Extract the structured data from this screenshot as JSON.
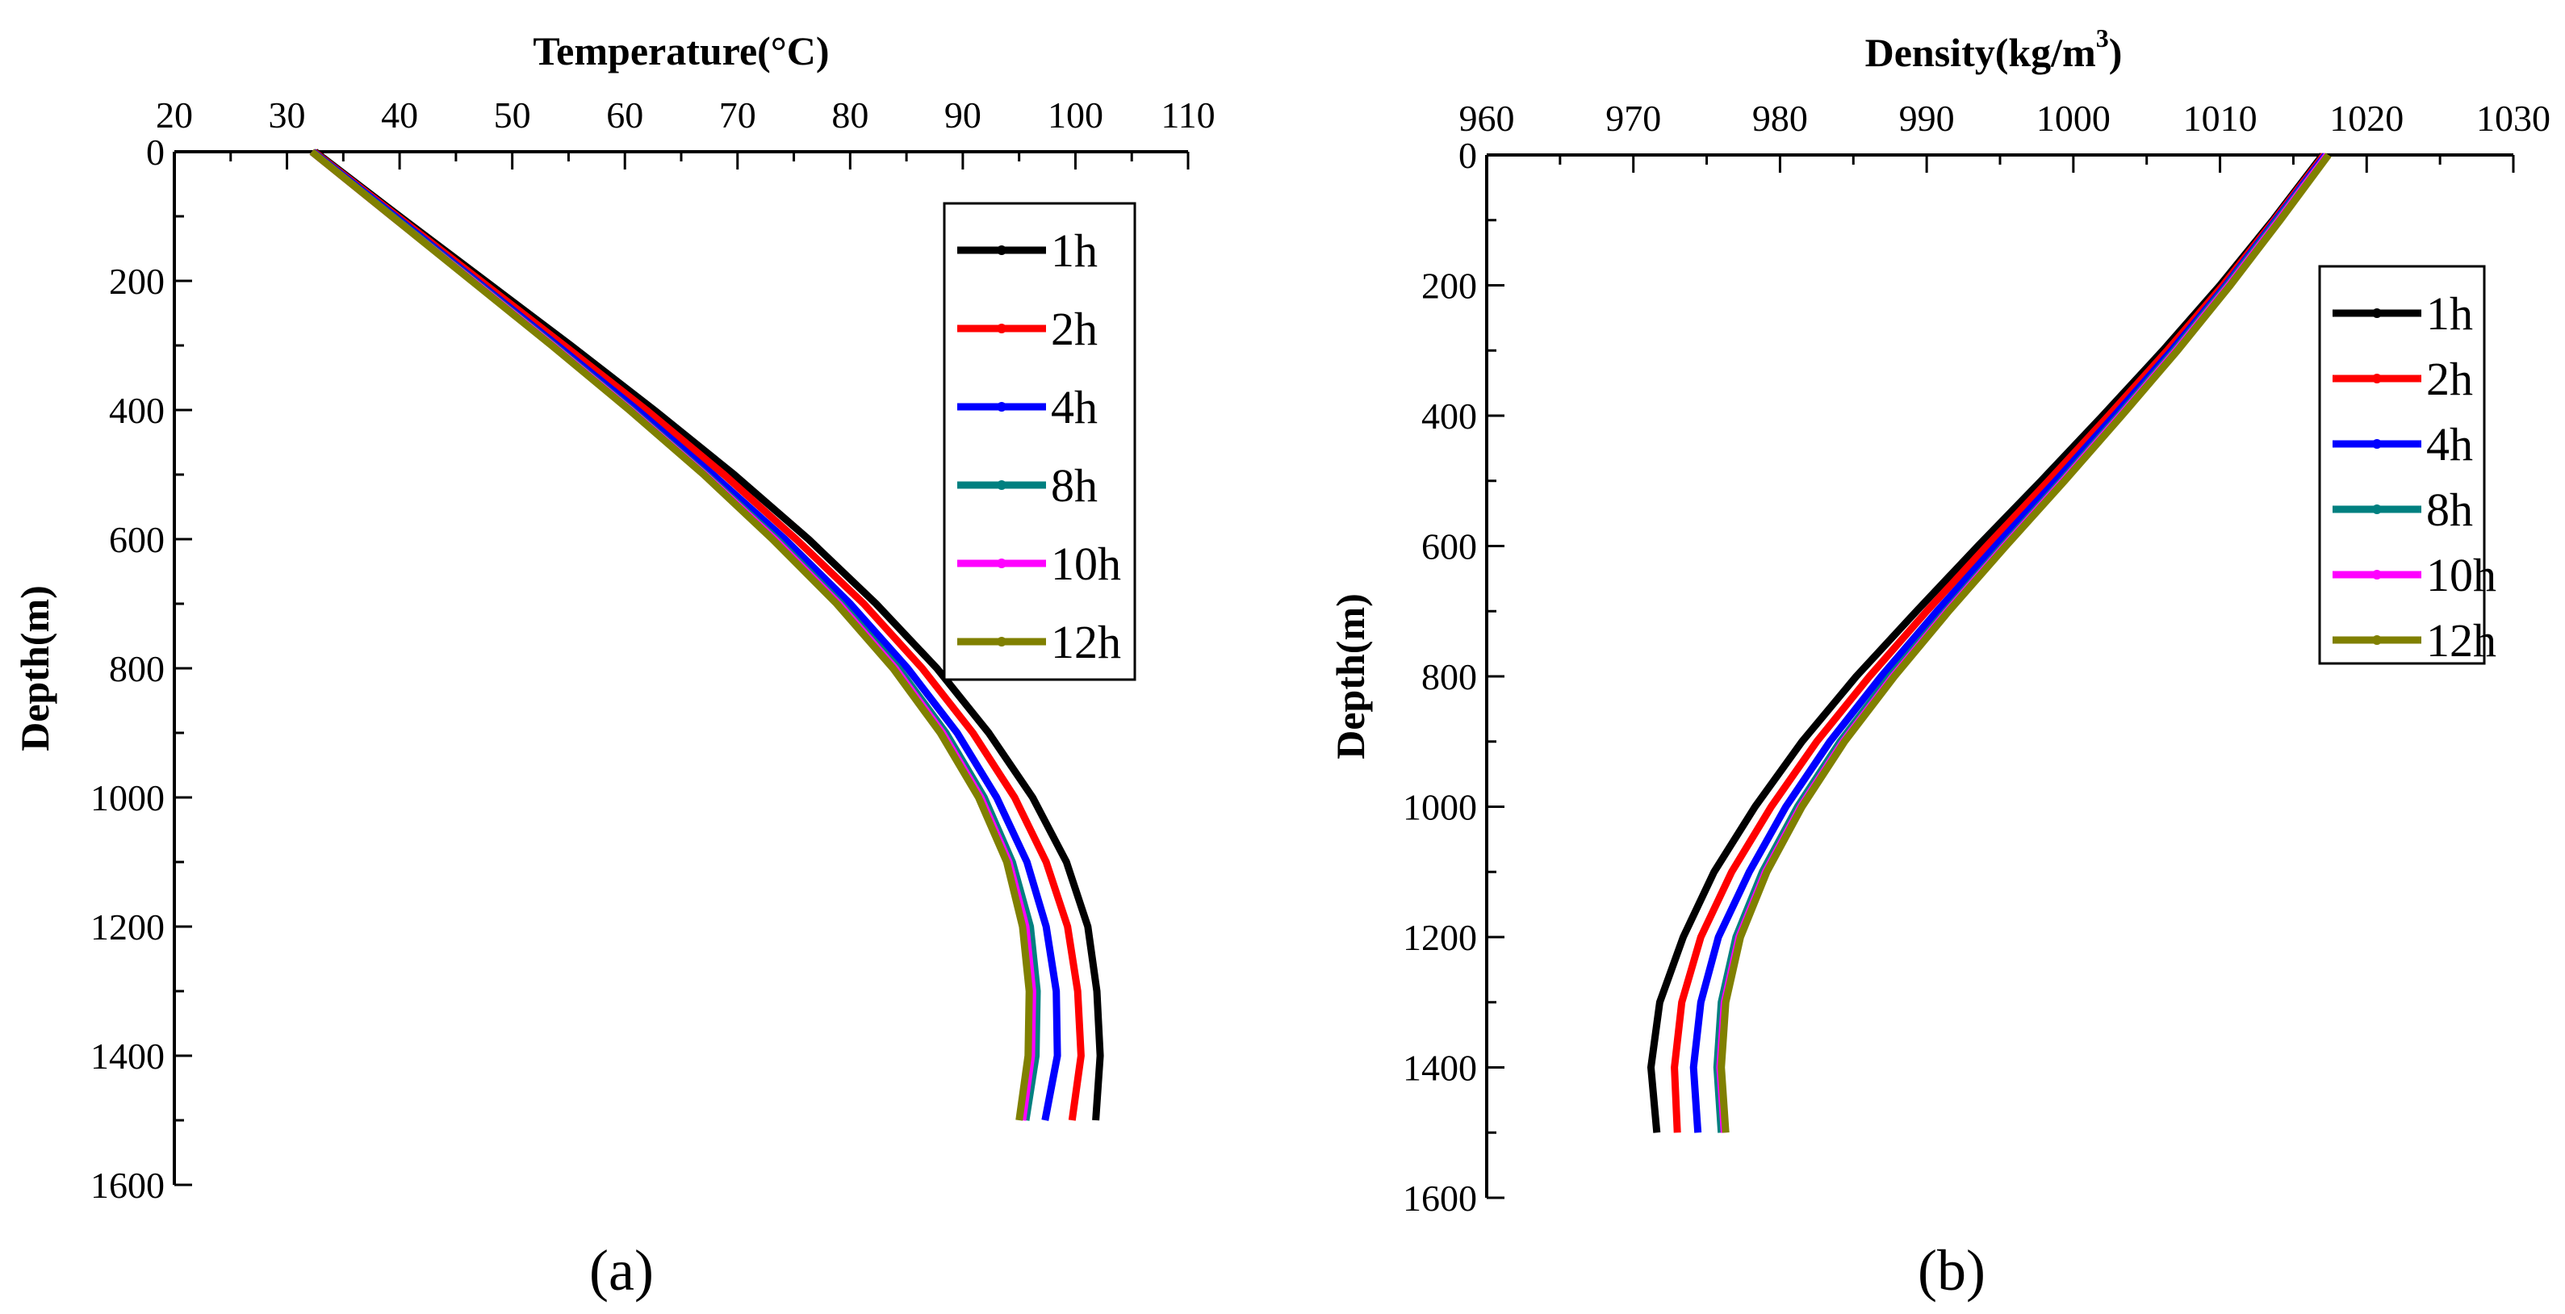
{
  "chart_data": [
    {
      "type": "line",
      "panel_label": "(a)",
      "xlabel": "Temperature(°C)",
      "ylabel": "Depth(m)",
      "xlim": [
        20,
        110
      ],
      "ylim": [
        0,
        1600
      ],
      "xticks": [
        20,
        30,
        40,
        50,
        60,
        70,
        80,
        90,
        100,
        110
      ],
      "yticks": [
        0,
        200,
        400,
        600,
        800,
        1000,
        1200,
        1400,
        1600
      ],
      "x_axis_position": "top",
      "y_inverted": true,
      "legend_position": "top-right",
      "depth": [
        0,
        100,
        200,
        300,
        400,
        500,
        600,
        700,
        800,
        900,
        1000,
        1100,
        1200,
        1300,
        1400,
        1500
      ],
      "series": [
        {
          "name": "1h",
          "color": "#000000",
          "values": [
            32.5,
            40.0,
            47.6,
            55.2,
            62.6,
            69.7,
            76.3,
            82.3,
            87.7,
            92.3,
            96.2,
            99.2,
            101.1,
            101.9,
            102.2,
            101.8
          ]
        },
        {
          "name": "2h",
          "color": "#ff0000",
          "values": [
            32.4,
            39.8,
            47.2,
            54.6,
            61.9,
            68.8,
            75.2,
            81.2,
            86.4,
            90.9,
            94.6,
            97.4,
            99.3,
            100.2,
            100.5,
            99.7
          ]
        },
        {
          "name": "4h",
          "color": "#0000ff",
          "values": [
            32.3,
            39.6,
            46.8,
            54.0,
            61.1,
            67.8,
            74.2,
            80.0,
            85.1,
            89.5,
            93.0,
            95.7,
            97.4,
            98.3,
            98.4,
            97.3
          ]
        },
        {
          "name": "8h",
          "color": "#008080",
          "values": [
            32.2,
            39.4,
            46.6,
            53.7,
            60.6,
            67.2,
            73.5,
            79.2,
            84.3,
            88.5,
            91.9,
            94.4,
            96.0,
            96.6,
            96.5,
            95.6
          ]
        },
        {
          "name": "10h",
          "color": "#ff00ff",
          "values": [
            32.2,
            39.3,
            46.5,
            53.6,
            60.5,
            67.1,
            73.3,
            79.0,
            84.0,
            88.2,
            91.6,
            94.1,
            95.6,
            96.2,
            96.1,
            95.3
          ]
        },
        {
          "name": "12h",
          "color": "#808000",
          "values": [
            32.2,
            39.3,
            46.4,
            53.5,
            60.4,
            67.0,
            73.1,
            78.8,
            83.8,
            88.0,
            91.4,
            93.9,
            95.3,
            95.9,
            95.8,
            95.0
          ]
        }
      ]
    },
    {
      "type": "line",
      "panel_label": "(b)",
      "xlabel": "Density(kg/m",
      "xlabel_superscript": "3",
      "xlabel_suffix": ")",
      "ylabel": "Depth(m)",
      "xlim": [
        960,
        1030
      ],
      "ylim": [
        0,
        1600
      ],
      "xticks": [
        960,
        970,
        980,
        990,
        1000,
        1010,
        1020,
        1030
      ],
      "yticks": [
        0,
        200,
        400,
        600,
        800,
        1000,
        1200,
        1400,
        1600
      ],
      "x_axis_position": "top",
      "y_inverted": true,
      "legend_position": "top-right",
      "depth": [
        0,
        100,
        200,
        300,
        400,
        500,
        600,
        700,
        800,
        900,
        1000,
        1100,
        1200,
        1300,
        1400,
        1500
      ],
      "series": [
        {
          "name": "1h",
          "color": "#000000",
          "values": [
            1017.0,
            1013.6,
            1010.0,
            1006.1,
            1002.0,
            997.8,
            993.5,
            989.3,
            985.2,
            981.5,
            978.3,
            975.5,
            973.4,
            971.8,
            971.2,
            971.6
          ]
        },
        {
          "name": "2h",
          "color": "#ff0000",
          "values": [
            1017.1,
            1013.7,
            1010.2,
            1006.4,
            1002.4,
            998.3,
            994.1,
            990.0,
            986.1,
            982.5,
            979.4,
            976.7,
            974.6,
            973.3,
            972.8,
            973.0
          ]
        },
        {
          "name": "4h",
          "color": "#0000ff",
          "values": [
            1017.2,
            1013.8,
            1010.4,
            1006.7,
            1002.8,
            998.8,
            994.7,
            990.7,
            986.9,
            983.4,
            980.4,
            977.9,
            975.8,
            974.6,
            974.1,
            974.4
          ]
        },
        {
          "name": "8h",
          "color": "#008080",
          "values": [
            1017.3,
            1013.9,
            1010.5,
            1006.9,
            1003.1,
            999.2,
            995.2,
            991.3,
            987.5,
            984.1,
            981.2,
            978.8,
            977.0,
            976.0,
            975.7,
            976.0
          ]
        },
        {
          "name": "10h",
          "color": "#ff00ff",
          "values": [
            1017.3,
            1014.0,
            1010.6,
            1007.0,
            1003.2,
            999.3,
            995.3,
            991.4,
            987.7,
            984.3,
            981.4,
            979.0,
            977.2,
            976.2,
            975.9,
            976.2
          ]
        },
        {
          "name": "12h",
          "color": "#808000",
          "values": [
            1017.4,
            1014.1,
            1010.7,
            1007.1,
            1003.3,
            999.4,
            995.4,
            991.5,
            987.8,
            984.4,
            981.5,
            979.1,
            977.3,
            976.3,
            976.0,
            976.3
          ]
        }
      ]
    }
  ]
}
